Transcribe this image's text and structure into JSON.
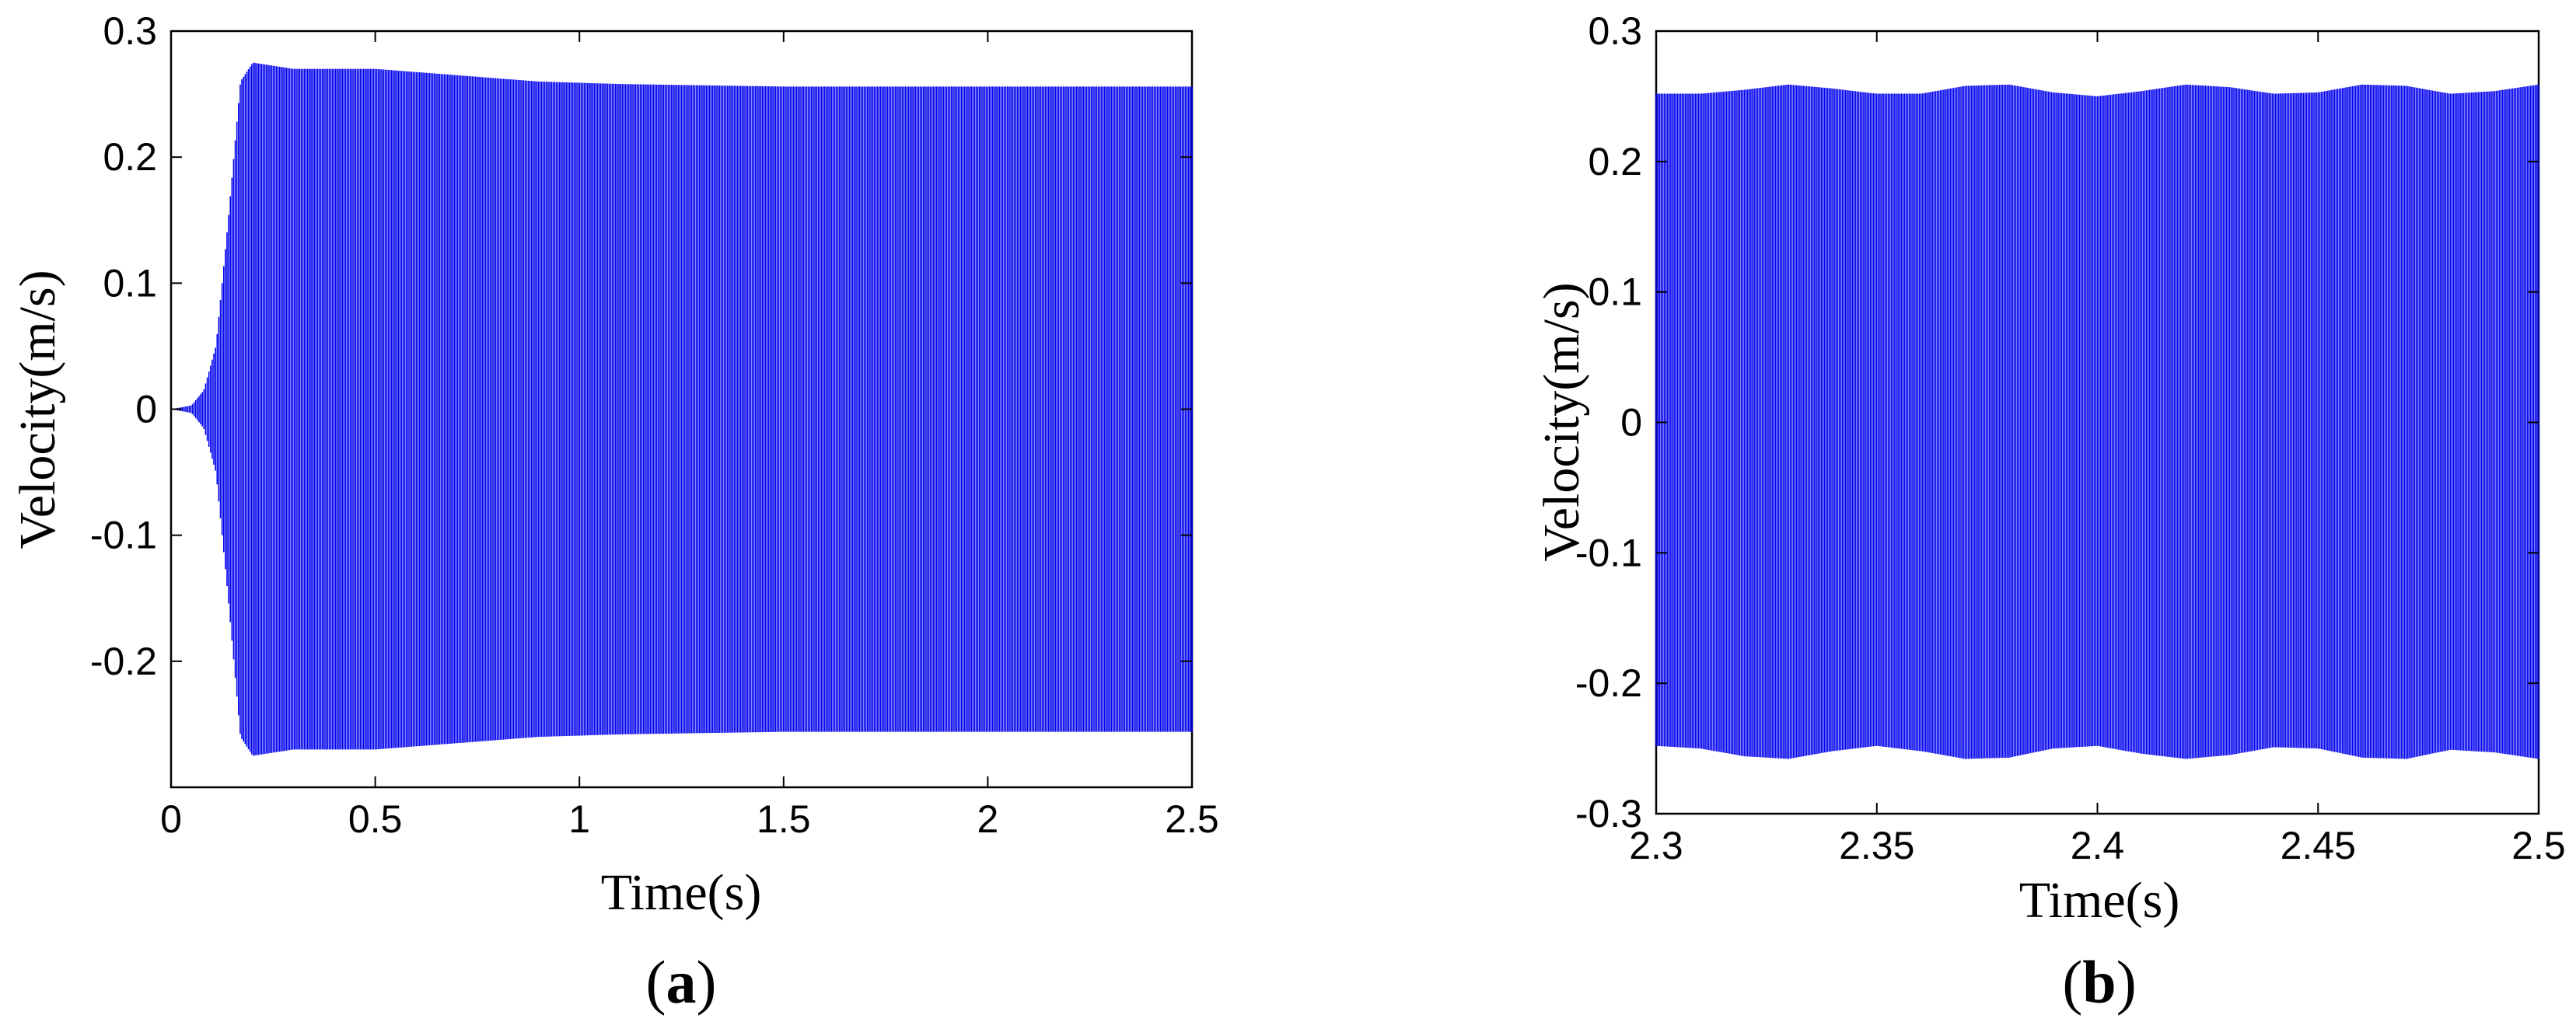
{
  "chart_data": [
    {
      "type": "line",
      "panel_label": "a",
      "xlabel": "Time(s)",
      "ylabel": "Velocity(m/s)",
      "xlim": [
        0,
        2.5
      ],
      "ylim": [
        -0.3,
        0.3
      ],
      "xticks": [
        0,
        0.5,
        1,
        1.5,
        2,
        2.5
      ],
      "xtick_labels": [
        "0",
        "0.5",
        "1",
        "1.5",
        "2",
        "2.5"
      ],
      "yticks": [
        -0.2,
        -0.1,
        0,
        0.1,
        0.2,
        0.3
      ],
      "ytick_labels": [
        "-0.2",
        "-0.1",
        "0",
        "0.1",
        "0.2",
        "0.3"
      ],
      "grid": false,
      "line_color": "#0000ee",
      "series": [
        {
          "style": "oscillation_envelope",
          "x": [
            0,
            0.05,
            0.08,
            0.11,
            0.14,
            0.17,
            0.2,
            0.3,
            0.5,
            0.7,
            0.9,
            1.1,
            1.5,
            2,
            2.5
          ],
          "amplitude": [
            0,
            0.003,
            0.015,
            0.05,
            0.15,
            0.26,
            0.275,
            0.27,
            0.27,
            0.265,
            0.26,
            0.258,
            0.256,
            0.256,
            0.256
          ]
        }
      ]
    },
    {
      "type": "line",
      "panel_label": "b",
      "xlabel": "Time(s)",
      "ylabel": "Velocity(m/s)",
      "xlim": [
        2.3,
        2.5
      ],
      "ylim": [
        -0.3,
        0.3
      ],
      "xticks": [
        2.3,
        2.35,
        2.4,
        2.45,
        2.5
      ],
      "xtick_labels": [
        "2.3",
        "2.35",
        "2.4",
        "2.45",
        "2.5"
      ],
      "yticks": [
        -0.3,
        -0.2,
        -0.1,
        0,
        0.1,
        0.2,
        0.3
      ],
      "ytick_labels": [
        "-0.3",
        "-0.2",
        "-0.1",
        "0",
        "0.1",
        "0.2",
        "0.3"
      ],
      "grid": false,
      "line_color": "#0000ee",
      "series": [
        {
          "style": "oscillation_envelope",
          "x": [
            2.3,
            2.31,
            2.32,
            2.33,
            2.34,
            2.35,
            2.36,
            2.37,
            2.38,
            2.39,
            2.4,
            2.41,
            2.42,
            2.43,
            2.44,
            2.45,
            2.46,
            2.47,
            2.48,
            2.49,
            2.5
          ],
          "upper": [
            0.252,
            0.252,
            0.255,
            0.259,
            0.256,
            0.252,
            0.252,
            0.258,
            0.259,
            0.253,
            0.25,
            0.254,
            0.259,
            0.257,
            0.252,
            0.253,
            0.259,
            0.258,
            0.252,
            0.254,
            0.259
          ],
          "lower": [
            -0.248,
            -0.25,
            -0.256,
            -0.258,
            -0.252,
            -0.248,
            -0.252,
            -0.258,
            -0.257,
            -0.25,
            -0.248,
            -0.254,
            -0.258,
            -0.255,
            -0.249,
            -0.25,
            -0.257,
            -0.258,
            -0.251,
            -0.253,
            -0.258
          ]
        }
      ]
    }
  ]
}
